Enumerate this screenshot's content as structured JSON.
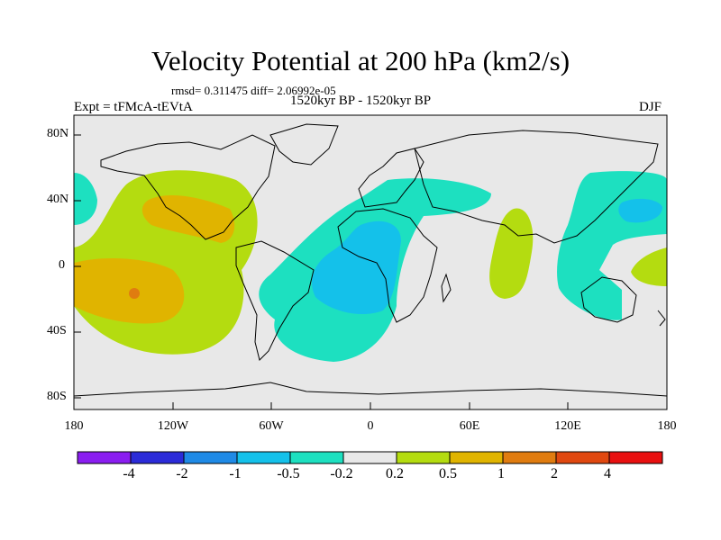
{
  "header": {
    "title": "Velocity Potential at 200 hPa (km2/s)",
    "stats": "rmsd= 0.311475 diff= 2.06992e-05",
    "experiment": "Expt = tFMcA-tEVtA",
    "period": "1520kyr BP - 1520kyr BP",
    "season": "DJF"
  },
  "axes": {
    "y_ticks": [
      "80N",
      "40N",
      "0",
      "40S",
      "80S"
    ],
    "x_ticks": [
      "180",
      "120W",
      "60W",
      "0",
      "60E",
      "120E",
      "180"
    ]
  },
  "colorbar": {
    "labels": [
      "-4",
      "-2",
      "-1",
      "-0.5",
      "-0.2",
      "0.2",
      "0.5",
      "1",
      "2",
      "4"
    ],
    "colors": [
      "#8a1ef0",
      "#2b2bd8",
      "#1f8ae6",
      "#14c1ea",
      "#1de0c0",
      "#e8e8e8",
      "#b4dc10",
      "#e0b400",
      "#e07c10",
      "#e04810",
      "#e81010"
    ]
  },
  "colors": {
    "background_field": "#e8e8e8",
    "neg_weak": "#1de0c0",
    "neg_mid": "#14c1ea",
    "pos_weak": "#b4dc10",
    "pos_mid": "#e0b400",
    "pos_strong": "#e07c10"
  }
}
